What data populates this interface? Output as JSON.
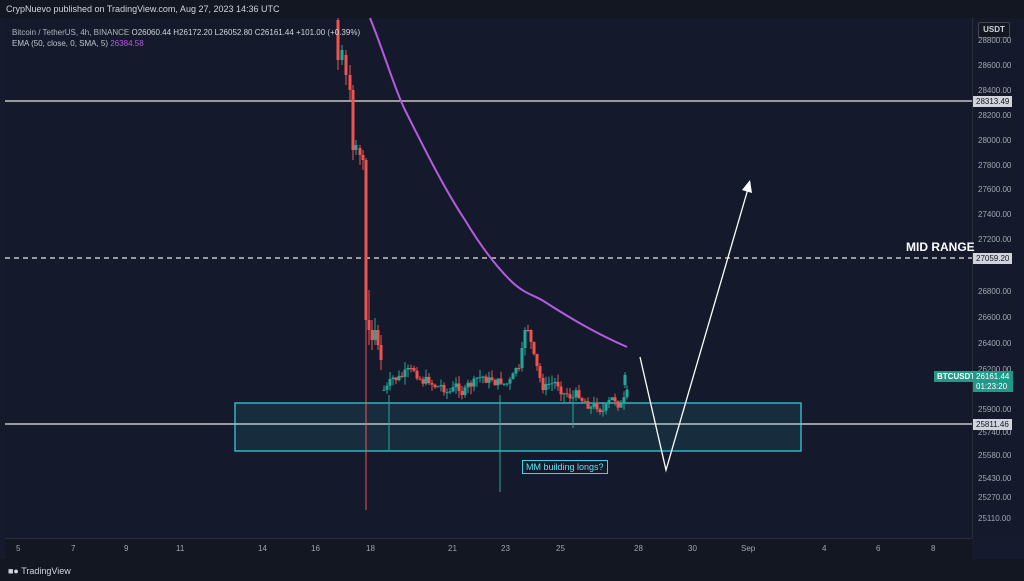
{
  "publisher": "CrypNuevo published on TradingView.com, Aug 27, 2023 14:36 UTC",
  "legend": {
    "symbol": "Bitcoin / TetherUS, 4h, BINANCE",
    "ohlc": "O26060.44 H26172.20 L26052.80 C26161.44 +101.00 (+0.39%)",
    "ema_label": "EMA (50, close, 0, SMA, 5)",
    "ema_value": "26384.58"
  },
  "currency_button": "USDT",
  "price_axis": [
    "28800.00",
    "28600.00",
    "28400.00",
    "28200.00",
    "28000.00",
    "27800.00",
    "27600.00",
    "27400.00",
    "27200.00",
    "26800.00",
    "26600.00",
    "26400.00",
    "26200.00",
    "25900.00",
    "25740.00",
    "25580.00",
    "25430.00",
    "25270.00",
    "25110.00"
  ],
  "levels": {
    "top": "28313.49",
    "mid": "27059.20",
    "bottom": "25811.46"
  },
  "current": {
    "symbol": "BTCUSDT",
    "price": "26161.44",
    "countdown": "01:23:20"
  },
  "annotations": {
    "mid_range": "MID RANGE",
    "box": "MM building longs?"
  },
  "time_axis": [
    "5",
    "7",
    "9",
    "11",
    "14",
    "16",
    "18",
    "21",
    "23",
    "25",
    "28",
    "30",
    "Sep",
    "4",
    "6",
    "8"
  ],
  "brand": "TradingView",
  "colors": {
    "up": "#26a69a",
    "down": "#ef5350",
    "ema": "#b45be0",
    "box": "#3bd6e6",
    "background": "#141a2b"
  }
}
